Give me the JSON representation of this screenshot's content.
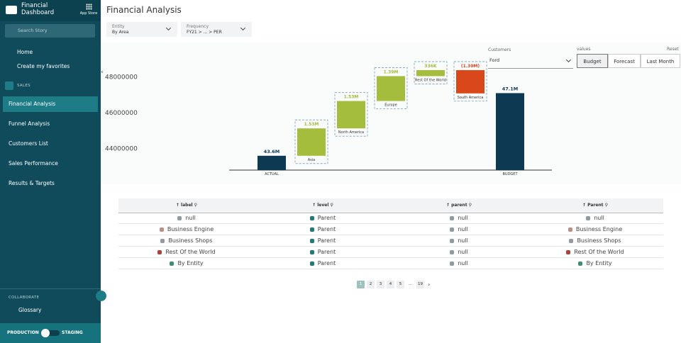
{
  "sidebar": {
    "brand": "Financial Dashboard",
    "app_store": "App Store",
    "search_placeholder": "Search Story",
    "top_links": [
      "Home",
      "Create my favorites"
    ],
    "section": "SALES",
    "items": [
      "Financial Analysis",
      "Funnel Analysis",
      "Customers List",
      "Sales Performance",
      "Results & Targets"
    ],
    "active_item": 0,
    "collaborate": "COLLABORATE",
    "glossary": "Glossary",
    "env_left": "PRODUCTION",
    "env_right": "STAGING"
  },
  "header": {
    "title": "Financial Analysis"
  },
  "filters": [
    {
      "label": "Entity",
      "value": "By Area"
    },
    {
      "label": "Frequency",
      "value": "FY21 > ... > PER"
    }
  ],
  "controls": {
    "customers_label": "Customers",
    "customers_value": "Ford",
    "values_label": "values",
    "reset": "Reset",
    "buttons": [
      "Budget",
      "Forecast",
      "Last Month"
    ],
    "active_button": 0
  },
  "chart": {
    "type": "waterfall",
    "categories": [
      "ACTUAL",
      "Asia",
      "North America",
      "Europe",
      "Rest Of the World",
      "South America",
      "BUDGET"
    ],
    "values": [
      43600000,
      1530000,
      1530000,
      1390000,
      336000,
      -1300000,
      47100000
    ],
    "value_labels": [
      "43.6M",
      "1.53M",
      "1.53M",
      "1.39M",
      "336K",
      "(1.30M)",
      "47.1M"
    ],
    "ylim": [
      42800000,
      48400000
    ],
    "yticks": [
      44000000,
      46000000,
      48000000
    ],
    "colors": {
      "total": "#0d3a52",
      "increase": "#a4bd3c",
      "decrease": "#d9481a"
    }
  },
  "table": {
    "columns": [
      "label",
      "level",
      "parent",
      "Parent"
    ],
    "rows": [
      [
        {
          "text": "null",
          "color": "#8e9aa4"
        },
        {
          "text": "Parent",
          "color": "#1f7a7a"
        },
        {
          "text": "null",
          "color": "#8e9aa4"
        },
        {
          "text": "null",
          "color": "#8e9aa4"
        }
      ],
      [
        {
          "text": "Business Engine",
          "color": "#c48a86"
        },
        {
          "text": "Parent",
          "color": "#1f7a7a"
        },
        {
          "text": "null",
          "color": "#8e9aa4"
        },
        {
          "text": "Business Engine",
          "color": "#c48a86"
        }
      ],
      [
        {
          "text": "Business Shops",
          "color": "#8e9aa4"
        },
        {
          "text": "Parent",
          "color": "#1f7a7a"
        },
        {
          "text": "null",
          "color": "#8e9aa4"
        },
        {
          "text": "Business Shops",
          "color": "#8e9aa4"
        }
      ],
      [
        {
          "text": "Rest Of the World",
          "color": "#b0403f"
        },
        {
          "text": "Parent",
          "color": "#1f7a7a"
        },
        {
          "text": "null",
          "color": "#8e9aa4"
        },
        {
          "text": "Rest Of the World",
          "color": "#b0403f"
        }
      ],
      [
        {
          "text": "By Entity",
          "color": "#3d8f6f"
        },
        {
          "text": "Parent",
          "color": "#1f7a7a"
        },
        {
          "text": "null",
          "color": "#8e9aa4"
        },
        {
          "text": "By Entity",
          "color": "#3d8f6f"
        }
      ]
    ]
  },
  "pagination": {
    "pages": [
      "1",
      "2",
      "3",
      "4",
      "5",
      "…",
      "19"
    ],
    "current": 0
  }
}
